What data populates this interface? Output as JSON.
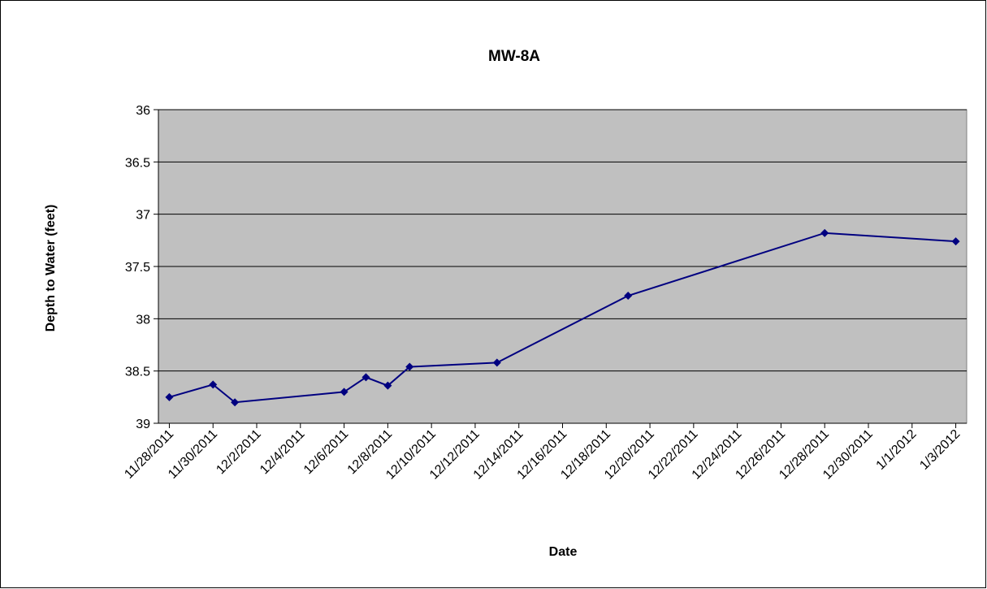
{
  "chart_data": {
    "type": "line",
    "title": "MW-8A",
    "x_label": "Date",
    "y_label": "Depth to Water (feet)",
    "x": [
      "11/28/2011",
      "11/30/2011",
      "12/1/2011",
      "12/6/2011",
      "12/7/2011",
      "12/8/2011",
      "12/9/2011",
      "12/13/2011",
      "12/19/2011",
      "12/28/2011",
      "1/3/2012"
    ],
    "series": [
      {
        "name": "MW-8A",
        "color": "#000080",
        "values": [
          38.75,
          38.63,
          38.8,
          38.7,
          38.56,
          38.64,
          38.46,
          38.42,
          37.78,
          37.18,
          37.26
        ]
      }
    ],
    "xlim": [
      "11/28/2011",
      "1/3/2012"
    ],
    "xticks": [
      "11/28/2011",
      "11/30/2011",
      "12/2/2011",
      "12/4/2011",
      "12/6/2011",
      "12/8/2011",
      "12/10/2011",
      "12/12/2011",
      "12/14/2011",
      "12/16/2011",
      "12/18/2011",
      "12/20/2011",
      "12/22/2011",
      "12/24/2011",
      "12/26/2011",
      "12/28/2011",
      "12/30/2011",
      "1/1/2012",
      "1/3/2012"
    ],
    "ylim": [
      36,
      39
    ],
    "yticks": [
      36,
      36.5,
      37,
      37.5,
      38,
      38.5,
      39
    ],
    "y_reversed": true,
    "grid": true,
    "plot_background": "#c0c0c0"
  }
}
